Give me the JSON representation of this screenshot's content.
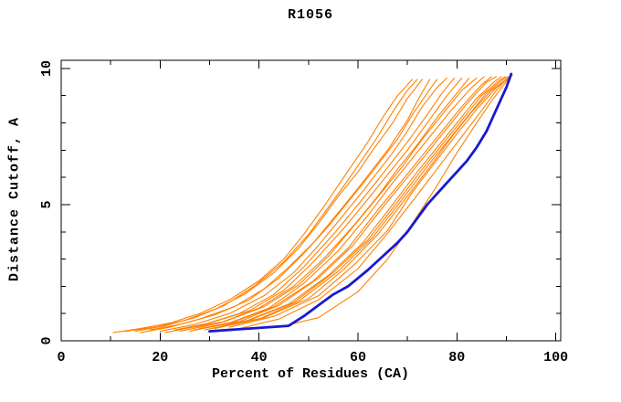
{
  "window": {
    "background": "#ffffff"
  },
  "chart_data": {
    "type": "line",
    "title": "R1056",
    "xlabel": "Percent of Residues (CA)",
    "ylabel": "Distance Cutoff, A",
    "xlim": [
      0,
      101
    ],
    "ylim": [
      0,
      10.3
    ],
    "grid": false,
    "legend": "none",
    "x_major_ticks": [
      0,
      20,
      40,
      60,
      80,
      100
    ],
    "x_tick_labels": [
      "0",
      "20",
      "40",
      "60",
      "80",
      "100"
    ],
    "x_minor_step": 10,
    "y_major_ticks": [
      0,
      5,
      10
    ],
    "y_tick_labels": [
      "0",
      "5",
      "10"
    ],
    "y_minor_step": 1,
    "colors": {
      "model_curves": "#ff8000",
      "reference_curve": "#1a1acd",
      "axis": "#000000",
      "background": "#ffffff"
    },
    "series": [
      {
        "name": "reference",
        "role": "reference_curve",
        "width": 2.8,
        "points": [
          [
            30,
            0.35
          ],
          [
            38,
            0.45
          ],
          [
            46,
            0.55
          ],
          [
            49,
            0.9
          ],
          [
            52,
            1.3
          ],
          [
            55,
            1.7
          ],
          [
            58,
            2.0
          ],
          [
            60,
            2.3
          ],
          [
            62,
            2.6
          ],
          [
            65,
            3.1
          ],
          [
            68,
            3.6
          ],
          [
            70,
            4.0
          ],
          [
            72,
            4.5
          ],
          [
            74,
            5.0
          ],
          [
            76,
            5.4
          ],
          [
            78,
            5.8
          ],
          [
            80,
            6.2
          ],
          [
            82,
            6.6
          ],
          [
            84,
            7.1
          ],
          [
            86,
            7.7
          ],
          [
            87.5,
            8.3
          ],
          [
            89,
            8.9
          ],
          [
            90,
            9.3
          ],
          [
            90.6,
            9.6
          ],
          [
            91,
            9.8
          ]
        ]
      },
      {
        "name": "model-01",
        "role": "model_curves",
        "width": 1.1,
        "points": [
          [
            10.5,
            0.3
          ],
          [
            16,
            0.45
          ],
          [
            22,
            0.65
          ],
          [
            28,
            1.0
          ],
          [
            34,
            1.5
          ],
          [
            40,
            2.2
          ],
          [
            45,
            3.0
          ],
          [
            49,
            3.9
          ],
          [
            53,
            4.9
          ],
          [
            56,
            5.7
          ],
          [
            59,
            6.5
          ],
          [
            62,
            7.3
          ],
          [
            65,
            8.2
          ],
          [
            68,
            9.0
          ],
          [
            71,
            9.6
          ]
        ]
      },
      {
        "name": "model-02",
        "role": "model_curves",
        "width": 1.1,
        "points": [
          [
            13,
            0.35
          ],
          [
            19,
            0.5
          ],
          [
            25,
            0.75
          ],
          [
            31,
            1.15
          ],
          [
            37,
            1.7
          ],
          [
            43,
            2.5
          ],
          [
            48,
            3.4
          ],
          [
            52,
            4.3
          ],
          [
            56,
            5.3
          ],
          [
            60,
            6.2
          ],
          [
            63,
            7.0
          ],
          [
            67,
            8.0
          ],
          [
            70,
            8.9
          ],
          [
            73,
            9.6
          ]
        ]
      },
      {
        "name": "model-03",
        "role": "model_curves",
        "width": 1.1,
        "points": [
          [
            16,
            0.3
          ],
          [
            22,
            0.5
          ],
          [
            28,
            0.8
          ],
          [
            35,
            1.25
          ],
          [
            41,
            1.9
          ],
          [
            46,
            2.7
          ],
          [
            51,
            3.6
          ],
          [
            56,
            4.7
          ],
          [
            60,
            5.6
          ],
          [
            63,
            6.3
          ],
          [
            66,
            7.0
          ],
          [
            70,
            8.1
          ],
          [
            72,
            8.8
          ],
          [
            74.5,
            9.6
          ]
        ]
      },
      {
        "name": "model-04",
        "role": "model_curves",
        "width": 1.1,
        "points": [
          [
            18,
            0.4
          ],
          [
            24,
            0.6
          ],
          [
            31,
            0.95
          ],
          [
            38,
            1.5
          ],
          [
            44,
            2.3
          ],
          [
            49,
            3.2
          ],
          [
            54,
            4.2
          ],
          [
            58,
            5.1
          ],
          [
            62,
            6.0
          ],
          [
            65,
            6.7
          ],
          [
            68,
            7.4
          ],
          [
            71,
            8.3
          ],
          [
            74,
            9.1
          ],
          [
            76,
            9.6
          ]
        ]
      },
      {
        "name": "model-05",
        "role": "model_curves",
        "width": 1.1,
        "points": [
          [
            20,
            0.35
          ],
          [
            27,
            0.6
          ],
          [
            34,
            1.0
          ],
          [
            41,
            1.65
          ],
          [
            47,
            2.5
          ],
          [
            52,
            3.5
          ],
          [
            57,
            4.6
          ],
          [
            61,
            5.5
          ],
          [
            64,
            6.2
          ],
          [
            67,
            6.9
          ],
          [
            70,
            7.7
          ],
          [
            73,
            8.6
          ],
          [
            76,
            9.3
          ],
          [
            78,
            9.65
          ]
        ]
      },
      {
        "name": "model-06",
        "role": "model_curves",
        "width": 1.1,
        "points": [
          [
            21,
            0.3
          ],
          [
            28,
            0.55
          ],
          [
            36,
            1.0
          ],
          [
            43,
            1.7
          ],
          [
            49,
            2.7
          ],
          [
            55,
            3.9
          ],
          [
            60,
            5.0
          ],
          [
            64,
            5.9
          ],
          [
            67,
            6.6
          ],
          [
            70,
            7.3
          ],
          [
            74,
            8.3
          ],
          [
            77,
            9.1
          ],
          [
            79.5,
            9.65
          ]
        ]
      },
      {
        "name": "model-07",
        "role": "model_curves",
        "width": 1.1,
        "points": [
          [
            23,
            0.4
          ],
          [
            30,
            0.65
          ],
          [
            38,
            1.1
          ],
          [
            45,
            1.85
          ],
          [
            51,
            2.9
          ],
          [
            57,
            4.1
          ],
          [
            62,
            5.2
          ],
          [
            66,
            6.1
          ],
          [
            70,
            7.0
          ],
          [
            74,
            8.0
          ],
          [
            78,
            9.0
          ],
          [
            81,
            9.65
          ]
        ]
      },
      {
        "name": "model-08",
        "role": "model_curves",
        "width": 1.1,
        "points": [
          [
            24,
            0.35
          ],
          [
            32,
            0.65
          ],
          [
            40,
            1.2
          ],
          [
            47,
            2.0
          ],
          [
            53,
            3.0
          ],
          [
            59,
            4.2
          ],
          [
            64,
            5.3
          ],
          [
            68,
            6.3
          ],
          [
            72,
            7.2
          ],
          [
            76,
            8.2
          ],
          [
            80,
            9.1
          ],
          [
            82.5,
            9.65
          ]
        ]
      },
      {
        "name": "model-09",
        "role": "model_curves",
        "width": 1.1,
        "points": [
          [
            25,
            0.45
          ],
          [
            33,
            0.7
          ],
          [
            41,
            1.25
          ],
          [
            48,
            2.05
          ],
          [
            54,
            3.1
          ],
          [
            60,
            4.4
          ],
          [
            65,
            5.5
          ],
          [
            69,
            6.4
          ],
          [
            73,
            7.4
          ],
          [
            77,
            8.3
          ],
          [
            81,
            9.2
          ],
          [
            84,
            9.65
          ]
        ]
      },
      {
        "name": "model-10",
        "role": "model_curves",
        "width": 1.1,
        "points": [
          [
            26,
            0.35
          ],
          [
            34,
            0.65
          ],
          [
            42,
            1.2
          ],
          [
            49,
            2.1
          ],
          [
            56,
            3.3
          ],
          [
            62,
            4.6
          ],
          [
            67,
            5.8
          ],
          [
            71,
            6.7
          ],
          [
            75,
            7.6
          ],
          [
            79,
            8.5
          ],
          [
            83,
            9.3
          ],
          [
            85.5,
            9.7
          ]
        ]
      },
      {
        "name": "model-11",
        "role": "model_curves",
        "width": 1.1,
        "points": [
          [
            27,
            0.4
          ],
          [
            35,
            0.7
          ],
          [
            43,
            1.25
          ],
          [
            51,
            2.2
          ],
          [
            58,
            3.4
          ],
          [
            64,
            4.8
          ],
          [
            69,
            5.9
          ],
          [
            73,
            6.8
          ],
          [
            77,
            7.7
          ],
          [
            81,
            8.6
          ],
          [
            85,
            9.4
          ],
          [
            87,
            9.7
          ]
        ]
      },
      {
        "name": "model-12",
        "role": "model_curves",
        "width": 1.1,
        "points": [
          [
            28,
            0.45
          ],
          [
            36,
            0.7
          ],
          [
            44,
            1.3
          ],
          [
            52,
            2.3
          ],
          [
            59,
            3.5
          ],
          [
            65,
            4.9
          ],
          [
            70,
            6.0
          ],
          [
            74,
            6.9
          ],
          [
            78,
            7.8
          ],
          [
            82,
            8.7
          ],
          [
            86,
            9.5
          ],
          [
            88,
            9.7
          ]
        ]
      },
      {
        "name": "model-13",
        "role": "model_curves",
        "width": 1.1,
        "points": [
          [
            29,
            0.4
          ],
          [
            37,
            0.7
          ],
          [
            46,
            1.35
          ],
          [
            54,
            2.4
          ],
          [
            61,
            3.6
          ],
          [
            67,
            5.0
          ],
          [
            72,
            6.2
          ],
          [
            76,
            7.1
          ],
          [
            80,
            8.0
          ],
          [
            84,
            8.9
          ],
          [
            87.5,
            9.5
          ],
          [
            89,
            9.7
          ]
        ]
      },
      {
        "name": "model-14",
        "role": "model_curves",
        "width": 1.1,
        "points": [
          [
            30,
            0.5
          ],
          [
            38,
            0.75
          ],
          [
            47,
            1.4
          ],
          [
            55,
            2.5
          ],
          [
            62,
            3.7
          ],
          [
            68,
            5.1
          ],
          [
            73,
            6.3
          ],
          [
            77,
            7.2
          ],
          [
            81,
            8.1
          ],
          [
            85,
            9.0
          ],
          [
            88.5,
            9.55
          ],
          [
            89.8,
            9.7
          ]
        ]
      },
      {
        "name": "model-15",
        "role": "model_curves",
        "width": 1.1,
        "points": [
          [
            31,
            0.45
          ],
          [
            40,
            0.8
          ],
          [
            48,
            1.45
          ],
          [
            56,
            2.55
          ],
          [
            63,
            3.8
          ],
          [
            69,
            5.2
          ],
          [
            74,
            6.4
          ],
          [
            78,
            7.3
          ],
          [
            82,
            8.2
          ],
          [
            86,
            9.1
          ],
          [
            89,
            9.55
          ],
          [
            90.3,
            9.7
          ]
        ]
      },
      {
        "name": "model-16",
        "role": "model_curves",
        "width": 1.1,
        "points": [
          [
            32,
            0.5
          ],
          [
            41,
            0.85
          ],
          [
            50,
            1.55
          ],
          [
            57,
            2.6
          ],
          [
            64,
            3.9
          ],
          [
            70,
            5.3
          ],
          [
            75,
            6.5
          ],
          [
            79,
            7.5
          ],
          [
            83,
            8.4
          ],
          [
            87,
            9.2
          ],
          [
            90,
            9.6
          ],
          [
            91,
            9.75
          ]
        ]
      },
      {
        "name": "model-17",
        "role": "model_curves",
        "width": 1.1,
        "points": [
          [
            34,
            0.5
          ],
          [
            43,
            0.9
          ],
          [
            52,
            1.65
          ],
          [
            59,
            2.75
          ],
          [
            66,
            4.05
          ],
          [
            71,
            5.45
          ],
          [
            76,
            6.65
          ],
          [
            80,
            7.6
          ],
          [
            84,
            8.5
          ],
          [
            88,
            9.3
          ],
          [
            90.5,
            9.65
          ],
          [
            91.2,
            9.75
          ]
        ]
      },
      {
        "name": "model-18",
        "role": "model_curves",
        "width": 1.1,
        "points": [
          [
            15,
            0.35
          ],
          [
            21,
            0.55
          ],
          [
            27,
            0.85
          ],
          [
            33,
            1.3
          ],
          [
            39,
            2.0
          ],
          [
            45,
            2.9
          ],
          [
            50,
            3.9
          ],
          [
            54,
            4.9
          ],
          [
            58,
            5.9
          ],
          [
            61,
            6.7
          ],
          [
            64,
            7.5
          ],
          [
            67,
            8.4
          ],
          [
            70,
            9.2
          ],
          [
            72,
            9.6
          ]
        ]
      },
      {
        "name": "model-19",
        "role": "model_curves",
        "width": 1.1,
        "points": [
          [
            36,
            0.45
          ],
          [
            44,
            0.8
          ],
          [
            52,
            1.5
          ],
          [
            60,
            2.65
          ],
          [
            66,
            3.95
          ],
          [
            72,
            5.35
          ],
          [
            77,
            6.55
          ],
          [
            81,
            7.5
          ],
          [
            85,
            8.45
          ],
          [
            88,
            9.2
          ],
          [
            90,
            9.6
          ],
          [
            91,
            9.75
          ]
        ]
      },
      {
        "name": "model-20",
        "role": "model_curves",
        "width": 1.1,
        "points": [
          [
            44,
            0.5
          ],
          [
            52,
            0.85
          ],
          [
            60,
            1.8
          ],
          [
            66,
            3.0
          ],
          [
            71,
            4.3
          ],
          [
            76,
            5.7
          ],
          [
            80,
            6.9
          ],
          [
            84,
            8.0
          ],
          [
            87,
            8.8
          ],
          [
            89.5,
            9.4
          ],
          [
            90.8,
            9.7
          ]
        ]
      }
    ]
  }
}
